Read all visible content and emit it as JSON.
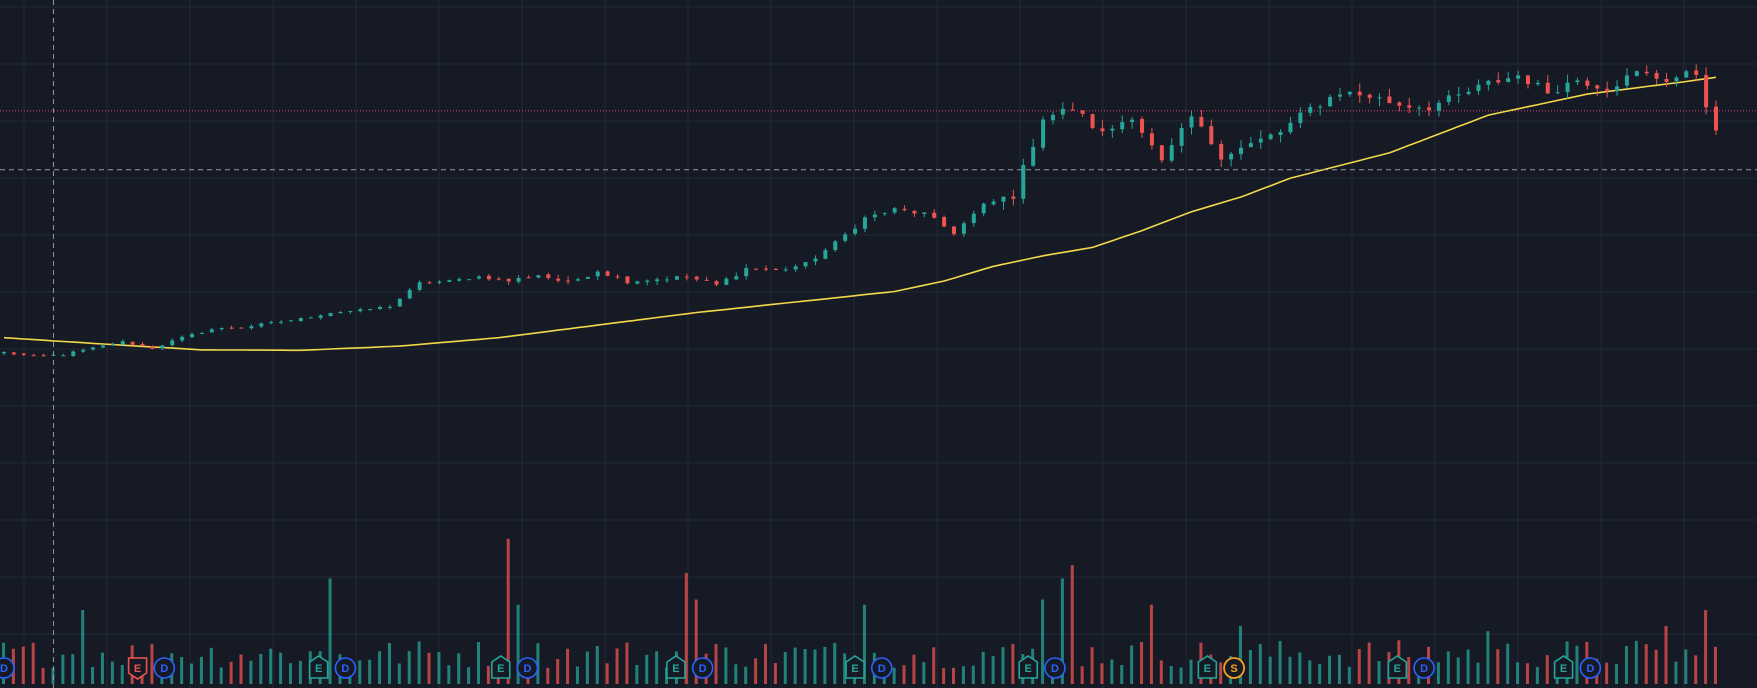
{
  "chart_data": {
    "type": "candlestick",
    "title": "",
    "xlabel": "",
    "ylabel": "",
    "ylim": [
      0,
      100
    ],
    "volume_ylim": [
      0,
      100
    ],
    "grid": true,
    "colors": {
      "background": "#161a25",
      "grid": "#232836",
      "up": "#26a69a",
      "down": "#ef5350",
      "moving_average": "#f2d84a",
      "price_line": "#e0437a",
      "crosshair": "#9598a1",
      "event_earnings_up": "#26a69a",
      "event_earnings_down": "#ef5350",
      "event_dividend": "#2962ff",
      "event_split": "#f7a21b"
    },
    "anchors_x": [
      0,
      3,
      6,
      9,
      12,
      15,
      18,
      21,
      24,
      27,
      30,
      33,
      36,
      39,
      42,
      45,
      48,
      51,
      54,
      57,
      60,
      63,
      66,
      69,
      72,
      75,
      78,
      81,
      84,
      87,
      90,
      93,
      96,
      99,
      102,
      105,
      108,
      111,
      114,
      117,
      120,
      123,
      126,
      129,
      132,
      135,
      138,
      141,
      144,
      147,
      150,
      153,
      156,
      159,
      162,
      165,
      168,
      171,
      173
    ],
    "close_anchors": [
      28.0,
      27.0,
      27.5,
      29.0,
      30.5,
      29.0,
      31.5,
      33.5,
      34.0,
      35.0,
      36.0,
      37.5,
      38.0,
      39.0,
      44.5,
      45.0,
      46.0,
      45.0,
      46.5,
      44.5,
      47.5,
      45.0,
      45.5,
      46.0,
      44.0,
      48.0,
      47.5,
      49.0,
      54.0,
      60.0,
      62.0,
      61.0,
      56.5,
      63.0,
      65.5,
      84.0,
      86.0,
      80.0,
      84.5,
      73.0,
      84.0,
      75.0,
      77.5,
      80.5,
      86.0,
      90.0,
      89.0,
      87.0,
      86.5,
      89.0,
      92.0,
      94.0,
      90.0,
      93.0,
      91.0,
      94.5,
      93.0,
      94.5,
      80.0
    ],
    "ma_x": [
      0,
      10,
      20,
      30,
      40,
      50,
      60,
      70,
      80,
      90,
      95,
      100,
      105,
      110,
      115,
      120,
      125,
      130,
      135,
      140,
      145,
      150,
      155,
      160,
      165,
      170,
      173
    ],
    "ma_values": [
      31.5,
      30.0,
      28.6,
      28.5,
      29.5,
      31.5,
      34.5,
      37.5,
      40.0,
      42.5,
      45.0,
      48.5,
      51.0,
      53.0,
      57.0,
      61.5,
      65.0,
      69.5,
      72.5,
      75.5,
      80.0,
      84.5,
      87.0,
      89.5,
      91.0,
      92.5,
      93.5
    ],
    "reference_price": 85.5,
    "crosshair": {
      "x": 5,
      "price": 71.5
    },
    "volume_baseline": 12,
    "volume_spikes": [
      {
        "index": 8,
        "value": 28
      },
      {
        "index": 33,
        "value": 40
      },
      {
        "index": 51,
        "value": 55
      },
      {
        "index": 52,
        "value": 30
      },
      {
        "index": 69,
        "value": 42
      },
      {
        "index": 70,
        "value": 32
      },
      {
        "index": 87,
        "value": 30
      },
      {
        "index": 105,
        "value": 32
      },
      {
        "index": 107,
        "value": 40
      },
      {
        "index": 108,
        "value": 45
      },
      {
        "index": 116,
        "value": 30
      },
      {
        "index": 125,
        "value": 22
      },
      {
        "index": 150,
        "value": 20
      },
      {
        "index": 168,
        "value": 22
      },
      {
        "index": 172,
        "value": 28
      }
    ],
    "events": [
      {
        "x": 0,
        "kind": "D",
        "label": "D"
      },
      {
        "x": 13.5,
        "kind": "E-down",
        "label": "E"
      },
      {
        "x": 16.2,
        "kind": "D",
        "label": "D"
      },
      {
        "x": 31.8,
        "kind": "E-up",
        "label": "E"
      },
      {
        "x": 34.5,
        "kind": "D",
        "label": "D"
      },
      {
        "x": 50.2,
        "kind": "E-up",
        "label": "E"
      },
      {
        "x": 52.9,
        "kind": "D",
        "label": "D"
      },
      {
        "x": 67.9,
        "kind": "E-up",
        "label": "E"
      },
      {
        "x": 70.6,
        "kind": "D",
        "label": "D"
      },
      {
        "x": 86.0,
        "kind": "E-up",
        "label": "E"
      },
      {
        "x": 88.7,
        "kind": "D",
        "label": "D"
      },
      {
        "x": 103.5,
        "kind": "E-up",
        "label": "E"
      },
      {
        "x": 106.2,
        "kind": "D",
        "label": "D"
      },
      {
        "x": 121.6,
        "kind": "E-up",
        "label": "E"
      },
      {
        "x": 124.3,
        "kind": "S",
        "label": "S"
      },
      {
        "x": 140.8,
        "kind": "E-up",
        "label": "E"
      },
      {
        "x": 143.5,
        "kind": "D",
        "label": "D"
      },
      {
        "x": 157.6,
        "kind": "E-up",
        "label": "E"
      },
      {
        "x": 160.3,
        "kind": "D",
        "label": "D"
      }
    ]
  }
}
